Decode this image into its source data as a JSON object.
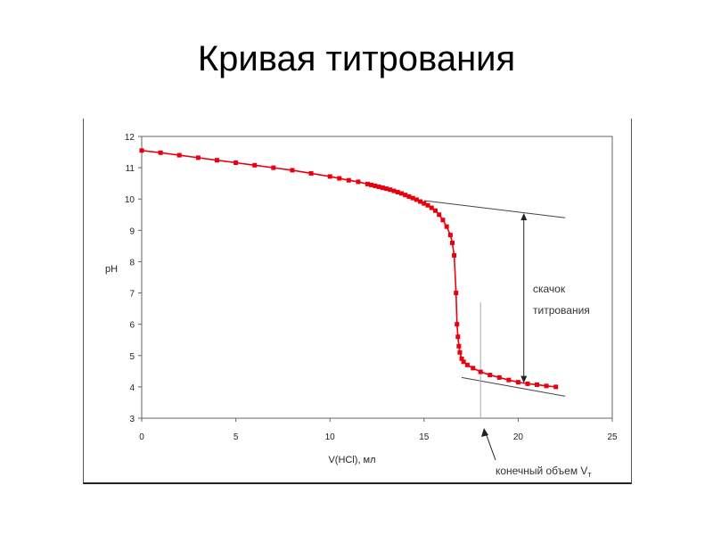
{
  "slide": {
    "title": "Кривая титрования"
  },
  "chart_data": {
    "type": "line",
    "title": "",
    "xlabel": "V(HCl), мл",
    "ylabel": "pH",
    "xlim": [
      0,
      25
    ],
    "ylim": [
      3,
      12
    ],
    "xticks": [
      "0",
      "5",
      "10",
      "15",
      "20",
      "25"
    ],
    "yticks": [
      "3",
      "4",
      "5",
      "6",
      "7",
      "8",
      "9",
      "10",
      "11",
      "12"
    ],
    "grid": false,
    "legend": "none",
    "series": [
      {
        "color": "#e8000f",
        "x": [
          0,
          1,
          2,
          3,
          4,
          5,
          6,
          7,
          8,
          9,
          10,
          10.5,
          11,
          11.5,
          12,
          12.2,
          12.4,
          12.6,
          12.8,
          13,
          13.2,
          13.4,
          13.6,
          13.8,
          14,
          14.2,
          14.4,
          14.6,
          14.8,
          15,
          15.2,
          15.4,
          15.6,
          15.8,
          16,
          16.2,
          16.4,
          16.5,
          16.6,
          16.7,
          16.75,
          16.8,
          16.85,
          16.9,
          17,
          17.1,
          17.3,
          17.6,
          18,
          18.5,
          19,
          19.5,
          20,
          20.5,
          21,
          21.5,
          22
        ],
        "y": [
          11.55,
          11.48,
          11.4,
          11.32,
          11.24,
          11.16,
          11.08,
          11.0,
          10.92,
          10.82,
          10.72,
          10.66,
          10.6,
          10.55,
          10.48,
          10.45,
          10.42,
          10.39,
          10.36,
          10.33,
          10.3,
          10.26,
          10.22,
          10.18,
          10.13,
          10.08,
          10.03,
          9.98,
          9.92,
          9.86,
          9.8,
          9.72,
          9.63,
          9.5,
          9.33,
          9.12,
          8.85,
          8.6,
          8.2,
          7.0,
          6.0,
          5.6,
          5.3,
          5.1,
          4.9,
          4.8,
          4.7,
          4.6,
          4.48,
          4.38,
          4.3,
          4.22,
          4.15,
          4.1,
          4.07,
          4.03,
          4.0
        ]
      }
    ],
    "annotations": {
      "upper_tangent": {
        "x": [
          15.0,
          22.5
        ],
        "y": [
          9.95,
          9.4
        ]
      },
      "lower_tangent": {
        "x": [
          17.0,
          22.5
        ],
        "y": [
          4.3,
          3.7
        ]
      },
      "jump_arrow": {
        "x": 20.3,
        "y": [
          9.55,
          4.12
        ]
      },
      "jump_label": [
        "скачок",
        "титрования"
      ],
      "endpoint_line": {
        "x": 18.0,
        "y": [
          3.0,
          6.7
        ]
      },
      "endpoint_label": "конечный объем V",
      "endpoint_subscript": "т"
    }
  }
}
